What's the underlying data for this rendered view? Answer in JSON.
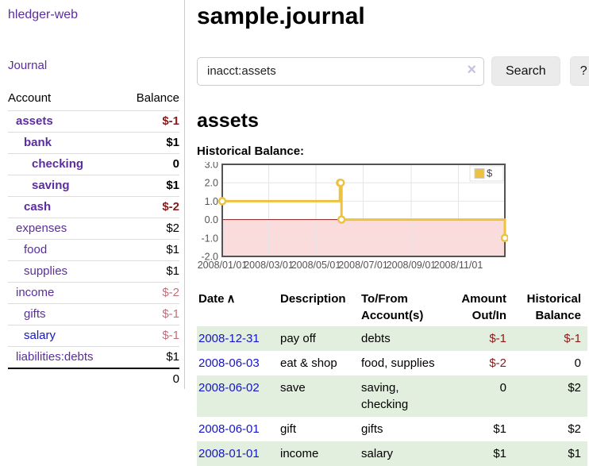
{
  "app": {
    "brand": "hledger-web"
  },
  "colors": {
    "link_purple": "#5b2d9e",
    "link_blue": "#1414cc",
    "neg_strong": "#8b1a1a",
    "neg_soft": "#c0707a",
    "row_green": "#e3efde"
  },
  "sidebar": {
    "journal_link": "Journal",
    "accounts_header": {
      "account": "Account",
      "balance": "Balance"
    },
    "accounts": [
      {
        "name": "assets",
        "balance": "$-1",
        "indent": 1,
        "bold": true,
        "neg": "strong"
      },
      {
        "name": "bank",
        "balance": "$1",
        "indent": 2,
        "bold": true,
        "neg": ""
      },
      {
        "name": "checking",
        "balance": "0",
        "indent": 3,
        "bold": true,
        "neg": ""
      },
      {
        "name": "saving",
        "balance": "$1",
        "indent": 3,
        "bold": true,
        "neg": ""
      },
      {
        "name": "cash",
        "balance": "$-2",
        "indent": 2,
        "bold": true,
        "neg": "strong"
      },
      {
        "name": "expenses",
        "balance": "$2",
        "indent": 1,
        "bold": false,
        "neg": ""
      },
      {
        "name": "food",
        "balance": "$1",
        "indent": 2,
        "bold": false,
        "neg": ""
      },
      {
        "name": "supplies",
        "balance": "$1",
        "indent": 2,
        "bold": false,
        "neg": ""
      },
      {
        "name": "income",
        "balance": "$-2",
        "indent": 1,
        "bold": false,
        "neg": "soft"
      },
      {
        "name": "gifts",
        "balance": "$-1",
        "indent": 2,
        "bold": false,
        "neg": "soft"
      },
      {
        "name": "salary",
        "balance": "$-1",
        "indent": 2,
        "bold": false,
        "neg": "soft",
        "blue": true
      },
      {
        "name": "liabilities:debts",
        "balance": "$1",
        "indent": 1,
        "bold": false,
        "neg": ""
      }
    ],
    "total": "0"
  },
  "main": {
    "title": "sample.journal",
    "search": {
      "value": "inacct:assets",
      "clear_icon": "×",
      "search_button": "Search",
      "help_button": "?"
    },
    "account_heading": "assets",
    "section_label": "Historical Balance:"
  },
  "chart_data": {
    "type": "line",
    "style": "step",
    "title": "Historical Balance:",
    "xlabel": "",
    "ylabel": "",
    "ylim": [
      -2,
      3
    ],
    "xlim": [
      "2008-01-01",
      "2008-12-31"
    ],
    "grid": true,
    "series": [
      {
        "name": "$",
        "color": "#EDC240",
        "points": [
          [
            "2008-01-01",
            1
          ],
          [
            "2008-06-01",
            2
          ],
          [
            "2008-06-02",
            2
          ],
          [
            "2008-06-03",
            0
          ],
          [
            "2008-12-31",
            -1
          ]
        ]
      }
    ],
    "y_ticks": [
      {
        "v": 3,
        "label": "3.0"
      },
      {
        "v": 2,
        "label": "2.0"
      },
      {
        "v": 1,
        "label": "1.0"
      },
      {
        "v": 0,
        "label": "0.0"
      },
      {
        "v": -1,
        "label": "-1.0"
      },
      {
        "v": -2,
        "label": "-2.0"
      }
    ],
    "x_ticks": [
      {
        "date": "2008-01-01",
        "label": "2008/01/01"
      },
      {
        "date": "2008-03-01",
        "label": "2008/03/01"
      },
      {
        "date": "2008-05-01",
        "label": "2008/05/01"
      },
      {
        "date": "2008-07-01",
        "label": "2008/07/01"
      },
      {
        "date": "2008-09-01",
        "label": "2008/09/01"
      },
      {
        "date": "2008-11-01",
        "label": "2008/11/01"
      }
    ],
    "negative_region_color": "#fadcdc",
    "zero_line_color": "#8b1e1e",
    "legend": {
      "label": "$",
      "position": "top-right"
    }
  },
  "register": {
    "headers": {
      "date": "Date",
      "description": "Description",
      "account": "To/From Account(s)",
      "amount": "Amount Out/In",
      "balance": "Historical Balance"
    },
    "sort_icon": "∧",
    "rows": [
      {
        "date": "2008-12-31",
        "description": "pay off",
        "accounts": "debts",
        "amount": "$-1",
        "amount_neg": true,
        "balance": "$-1",
        "balance_neg": true
      },
      {
        "date": "2008-06-03",
        "description": "eat & shop",
        "accounts": "food, supplies",
        "amount": "$-2",
        "amount_neg": true,
        "balance": "0",
        "balance_neg": false
      },
      {
        "date": "2008-06-02",
        "description": "save",
        "accounts": "saving, checking",
        "amount": "0",
        "amount_neg": false,
        "balance": "$2",
        "balance_neg": false
      },
      {
        "date": "2008-06-01",
        "description": "gift",
        "accounts": "gifts",
        "amount": "$1",
        "amount_neg": false,
        "balance": "$2",
        "balance_neg": false
      },
      {
        "date": "2008-01-01",
        "description": "income",
        "accounts": "salary",
        "amount": "$1",
        "amount_neg": false,
        "balance": "$1",
        "balance_neg": false
      }
    ]
  }
}
